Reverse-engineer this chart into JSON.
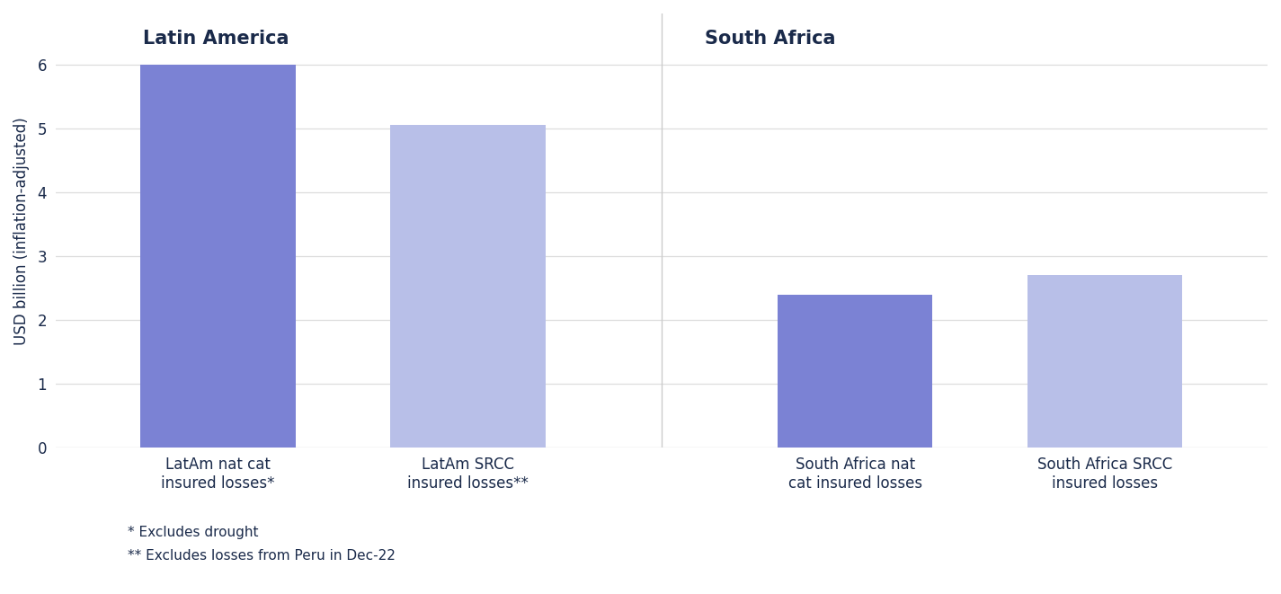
{
  "categories": [
    "LatAm nat cat\ninsured losses*",
    "LatAm SRCC\ninsured losses**",
    "South Africa nat\ncat insured losses",
    "South Africa SRCC\ninsured losses"
  ],
  "values": [
    6.0,
    5.05,
    2.4,
    2.7
  ],
  "bar_colors": [
    "#7b82d4",
    "#b8bfe8",
    "#7b82d4",
    "#b8bfe8"
  ],
  "ylabel": "USD billion (inflation-adjusted)",
  "ylim": [
    0,
    6.8
  ],
  "yticks": [
    0,
    1,
    2,
    3,
    4,
    5,
    6
  ],
  "group_labels": [
    "Latin America",
    "South Africa"
  ],
  "footnote1": "* Excludes drought",
  "footnote2": "** Excludes losses from Peru in Dec-22",
  "background_color": "#ffffff",
  "plot_bg_color": "#ffffff",
  "title_color": "#1a2a4a",
  "bar_width": 0.62,
  "separator_color": "#cccccc",
  "grid_color": "#dddddd",
  "ylabel_fontsize": 12,
  "tick_fontsize": 12,
  "group_label_fontsize": 15,
  "footnote_fontsize": 11
}
